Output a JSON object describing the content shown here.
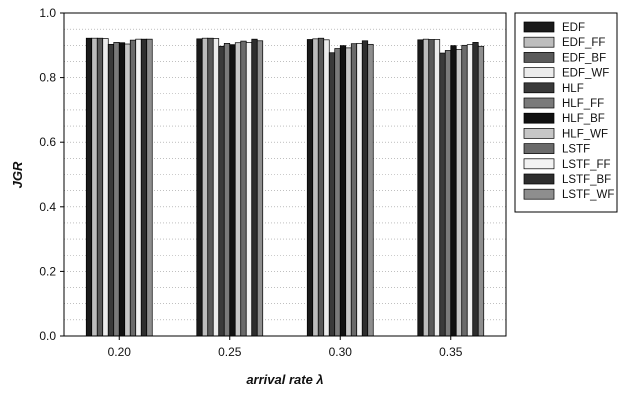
{
  "chart_data": {
    "type": "bar",
    "title": "",
    "xlabel": "arrival rate λ",
    "ylabel": "JGR",
    "ylim": [
      0,
      1.0
    ],
    "yticks": [
      "0.0",
      "0.2",
      "0.4",
      "0.6",
      "0.8",
      "1.0"
    ],
    "categories": [
      "0.20",
      "0.25",
      "0.30",
      "0.35"
    ],
    "grid": "horizontal dotted",
    "legend_position": "right",
    "series": [
      {
        "name": "EDF",
        "color": "#1a1a1a",
        "values": [
          0.922,
          0.92,
          0.918,
          0.917
        ]
      },
      {
        "name": "EDF_FF",
        "color": "#bdbdbd",
        "values": [
          0.922,
          0.922,
          0.92,
          0.919
        ]
      },
      {
        "name": "EDF_BF",
        "color": "#5a5a5a",
        "values": [
          0.922,
          0.922,
          0.922,
          0.918
        ]
      },
      {
        "name": "EDF_WF",
        "color": "#ececec",
        "values": [
          0.921,
          0.921,
          0.917,
          0.918
        ]
      },
      {
        "name": "HLF",
        "color": "#3a3a3a",
        "values": [
          0.903,
          0.897,
          0.877,
          0.876
        ]
      },
      {
        "name": "HLF_FF",
        "color": "#7a7a7a",
        "values": [
          0.909,
          0.906,
          0.89,
          0.884
        ]
      },
      {
        "name": "HLF_BF",
        "color": "#111111",
        "values": [
          0.908,
          0.902,
          0.899,
          0.899
        ]
      },
      {
        "name": "HLF_WF",
        "color": "#c6c6c6",
        "values": [
          0.904,
          0.908,
          0.892,
          0.887
        ]
      },
      {
        "name": "LSTF",
        "color": "#6a6a6a",
        "values": [
          0.916,
          0.913,
          0.905,
          0.9
        ]
      },
      {
        "name": "LSTF_FF",
        "color": "#f2f2f2",
        "values": [
          0.919,
          0.909,
          0.906,
          0.902
        ]
      },
      {
        "name": "LSTF_BF",
        "color": "#2e2e2e",
        "values": [
          0.919,
          0.919,
          0.914,
          0.909
        ]
      },
      {
        "name": "LSTF_WF",
        "color": "#8e8e8e",
        "values": [
          0.919,
          0.914,
          0.903,
          0.897
        ]
      }
    ]
  }
}
